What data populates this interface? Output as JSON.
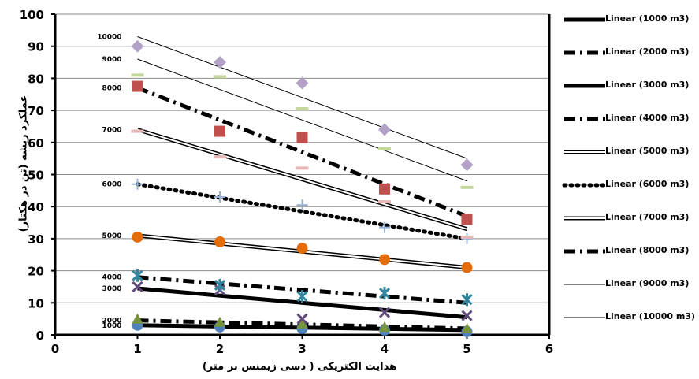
{
  "chart_data": {
    "type": "scatter",
    "xlabel": "هدایت الکتریکی ( دسی زیمنس بر متر)",
    "ylabel": "عملکرد ریشه (تن در هکتار)",
    "xlim": [
      0,
      6
    ],
    "ylim": [
      0,
      100
    ],
    "x_ticks": [
      0,
      1,
      2,
      3,
      4,
      5,
      6
    ],
    "y_ticks": [
      0,
      10,
      20,
      30,
      40,
      50,
      60,
      70,
      80,
      90,
      100
    ],
    "grid": "horizontal",
    "legend_position": "right",
    "x": [
      1,
      2,
      3,
      4,
      5
    ],
    "series": [
      {
        "name": "1000",
        "values": [
          3,
          2.5,
          2,
          1.5,
          1
        ],
        "trend": [
          3,
          1.5
        ],
        "color": "#4f81bd",
        "marker": "circle",
        "line_style": "solid-thick"
      },
      {
        "name": "2000",
        "values": [
          5,
          4,
          3.5,
          2.5,
          2
        ],
        "trend": [
          4.5,
          2
        ],
        "color": "#77933c",
        "marker": "triangle",
        "line_style": "dash-dot"
      },
      {
        "name": "3000",
        "values": [
          15,
          14,
          5,
          7,
          6
        ],
        "trend": [
          14.5,
          5.5
        ],
        "color": "#604a7b",
        "marker": "x",
        "line_style": "solid-thick"
      },
      {
        "name": "4000",
        "values": [
          18.5,
          15.5,
          12,
          13,
          11
        ],
        "trend": [
          18,
          10
        ],
        "color": "#31859c",
        "marker": "star",
        "line_style": "dash-dot"
      },
      {
        "name": "5000",
        "values": [
          30.5,
          29,
          27,
          23.5,
          21
        ],
        "trend": [
          31,
          21
        ],
        "color": "#e46c0a",
        "marker": "circle",
        "line_style": "double"
      },
      {
        "name": "6000",
        "values": [
          47,
          43,
          40.5,
          33.5,
          30
        ],
        "trend": [
          47,
          30
        ],
        "color": "#95b3d7",
        "marker": "plus",
        "line_style": "dotted"
      },
      {
        "name": "7000",
        "values": [
          63.5,
          55.5,
          52,
          41.5,
          30.5
        ],
        "trend": [
          64,
          33
        ],
        "color": "#e6b9b8",
        "marker": "dash",
        "line_style": "double"
      },
      {
        "name": "8000",
        "values": [
          77.5,
          63.5,
          61.5,
          45.5,
          36
        ],
        "trend": [
          77,
          37
        ],
        "color": "#c0504d",
        "marker": "square",
        "line_style": "dash-dot"
      },
      {
        "name": "9000",
        "values": [
          81,
          80.5,
          70.5,
          58,
          46
        ],
        "trend": [
          86,
          48
        ],
        "color": "#c3d69b",
        "marker": "dash",
        "line_style": "thin"
      },
      {
        "name": "10000",
        "values": [
          90,
          85,
          78.5,
          64,
          53
        ],
        "trend": [
          93,
          55
        ],
        "color": "#b3a2c7",
        "marker": "diamond",
        "line_style": "thin"
      }
    ],
    "legend": [
      "Linear (1000 m3)",
      "Linear (2000 m3)",
      "Linear (3000 m3)",
      "Linear (4000 m3)",
      "Linear (5000 m3)",
      "Linear (6000 m3)",
      "Linear (7000 m3)",
      "Linear (8000 m3)",
      "Linear (9000 m3)",
      "Linear (10000 m3)"
    ]
  }
}
